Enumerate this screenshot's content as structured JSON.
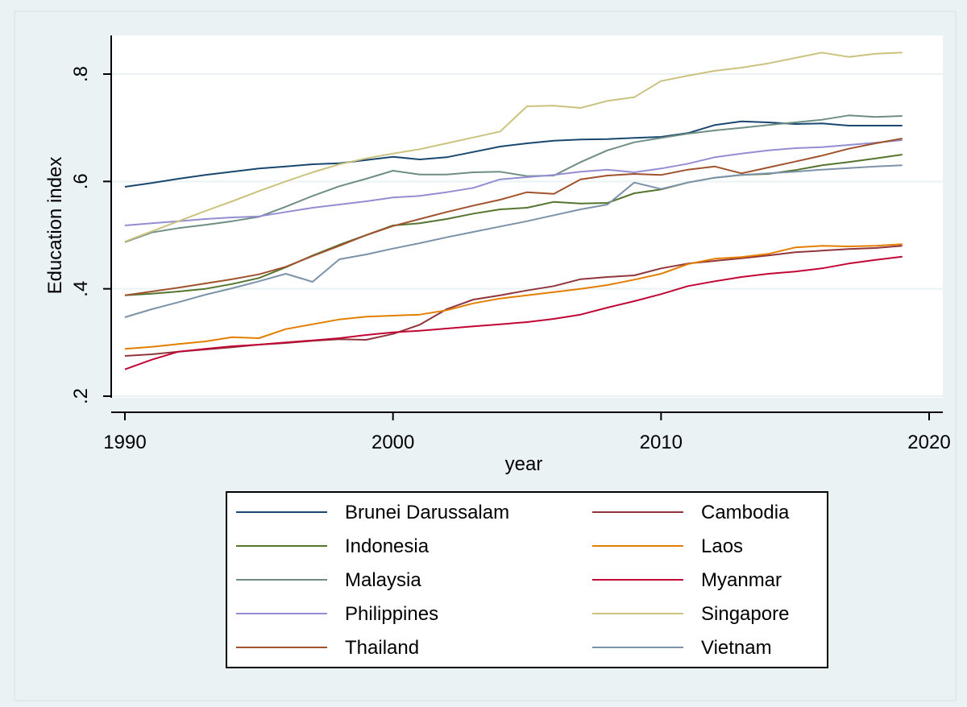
{
  "chart_data": {
    "type": "line",
    "xlabel": "year",
    "ylabel": "Education index",
    "xlim": [
      1990,
      2020
    ],
    "ylim": [
      0.2,
      0.85
    ],
    "x_ticks": [
      {
        "value": 1990,
        "label": "1990"
      },
      {
        "value": 2000,
        "label": "2000"
      },
      {
        "value": 2010,
        "label": "2010"
      },
      {
        "value": 2020,
        "label": "2020"
      }
    ],
    "y_ticks": [
      {
        "value": 0.2,
        "label": ".2"
      },
      {
        "value": 0.4,
        "label": ".4"
      },
      {
        "value": 0.6,
        "label": ".6"
      },
      {
        "value": 0.8,
        "label": ".8"
      }
    ],
    "grid": true,
    "legend_position": "bottom",
    "colors": {
      "outer_background": "#eaf2f3",
      "plot_background": "#ffffff",
      "grid": "#eaf2f3"
    },
    "x": [
      1990,
      1991,
      1992,
      1993,
      1994,
      1995,
      1996,
      1997,
      1998,
      1999,
      2000,
      2001,
      2002,
      2003,
      2004,
      2005,
      2006,
      2007,
      2008,
      2009,
      2010,
      2011,
      2012,
      2013,
      2014,
      2015,
      2016,
      2017,
      2018,
      2019
    ],
    "series": [
      {
        "name": "Brunei Darussalam",
        "color": "#1a476f",
        "values": [
          0.59,
          0.597,
          0.605,
          0.612,
          0.618,
          0.624,
          0.628,
          0.632,
          0.634,
          0.64,
          0.646,
          0.641,
          0.645,
          0.655,
          0.665,
          0.671,
          0.676,
          0.678,
          0.679,
          0.681,
          0.683,
          0.69,
          0.705,
          0.712,
          0.71,
          0.707,
          0.708,
          0.704,
          0.704,
          0.704
        ]
      },
      {
        "name": "Cambodia",
        "color": "#90353b",
        "values": [
          0.275,
          0.278,
          0.283,
          0.287,
          0.291,
          0.296,
          0.299,
          0.303,
          0.306,
          0.305,
          0.316,
          0.333,
          0.362,
          0.38,
          0.388,
          0.397,
          0.405,
          0.418,
          0.422,
          0.425,
          0.438,
          0.447,
          0.452,
          0.457,
          0.462,
          0.468,
          0.471,
          0.474,
          0.476,
          0.48
        ]
      },
      {
        "name": "Indonesia",
        "color": "#55752f",
        "values": [
          0.388,
          0.391,
          0.395,
          0.4,
          0.409,
          0.42,
          0.44,
          0.462,
          0.482,
          0.5,
          0.518,
          0.522,
          0.53,
          0.54,
          0.548,
          0.551,
          0.562,
          0.559,
          0.56,
          0.578,
          0.585,
          0.598,
          0.607,
          0.612,
          0.614,
          0.621,
          0.63,
          0.636,
          0.643,
          0.65
        ]
      },
      {
        "name": "Laos",
        "color": "#e37e00",
        "values": [
          0.288,
          0.292,
          0.297,
          0.302,
          0.31,
          0.308,
          0.325,
          0.334,
          0.343,
          0.348,
          0.35,
          0.352,
          0.36,
          0.373,
          0.382,
          0.388,
          0.394,
          0.4,
          0.407,
          0.417,
          0.428,
          0.446,
          0.456,
          0.459,
          0.465,
          0.477,
          0.48,
          0.479,
          0.48,
          0.483
        ]
      },
      {
        "name": "Malaysia",
        "color": "#6e8e84",
        "values": [
          0.487,
          0.505,
          0.513,
          0.519,
          0.526,
          0.534,
          0.553,
          0.573,
          0.591,
          0.605,
          0.62,
          0.613,
          0.613,
          0.617,
          0.618,
          0.61,
          0.611,
          0.636,
          0.658,
          0.673,
          0.681,
          0.689,
          0.695,
          0.7,
          0.705,
          0.71,
          0.715,
          0.723,
          0.72,
          0.722
        ]
      },
      {
        "name": "Myanmar",
        "color": "#c10534",
        "values": [
          0.25,
          0.268,
          0.283,
          0.288,
          0.293,
          0.296,
          0.3,
          0.304,
          0.308,
          0.314,
          0.319,
          0.322,
          0.326,
          0.33,
          0.334,
          0.338,
          0.344,
          0.352,
          0.365,
          0.377,
          0.39,
          0.405,
          0.414,
          0.422,
          0.428,
          0.432,
          0.438,
          0.447,
          0.454,
          0.46
        ]
      },
      {
        "name": "Philippines",
        "color": "#938dd2",
        "values": [
          0.518,
          0.522,
          0.526,
          0.53,
          0.533,
          0.535,
          0.543,
          0.551,
          0.557,
          0.563,
          0.57,
          0.573,
          0.58,
          0.588,
          0.604,
          0.608,
          0.612,
          0.618,
          0.622,
          0.617,
          0.624,
          0.633,
          0.645,
          0.652,
          0.658,
          0.662,
          0.664,
          0.668,
          0.672,
          0.677
        ]
      },
      {
        "name": "Singapore",
        "color": "#cac27e",
        "values": [
          0.488,
          0.507,
          0.526,
          0.545,
          0.563,
          0.582,
          0.6,
          0.617,
          0.632,
          0.643,
          0.652,
          0.66,
          0.671,
          0.682,
          0.693,
          0.74,
          0.741,
          0.737,
          0.75,
          0.757,
          0.787,
          0.797,
          0.806,
          0.812,
          0.82,
          0.83,
          0.84,
          0.832,
          0.838,
          0.84
        ]
      },
      {
        "name": "Thailand",
        "color": "#a0522d",
        "values": [
          0.388,
          0.395,
          0.402,
          0.41,
          0.418,
          0.427,
          0.441,
          0.461,
          0.48,
          0.5,
          0.517,
          0.53,
          0.543,
          0.555,
          0.566,
          0.58,
          0.577,
          0.604,
          0.611,
          0.614,
          0.612,
          0.622,
          0.628,
          0.615,
          0.626,
          0.637,
          0.648,
          0.661,
          0.671,
          0.68
        ]
      },
      {
        "name": "Vietnam",
        "color": "#7b92a8",
        "values": [
          0.347,
          0.362,
          0.375,
          0.389,
          0.401,
          0.414,
          0.428,
          0.413,
          0.455,
          0.464,
          0.475,
          0.485,
          0.496,
          0.506,
          0.516,
          0.526,
          0.537,
          0.548,
          0.557,
          0.598,
          0.586,
          0.598,
          0.607,
          0.612,
          0.615,
          0.618,
          0.622,
          0.625,
          0.628,
          0.63
        ]
      }
    ]
  }
}
